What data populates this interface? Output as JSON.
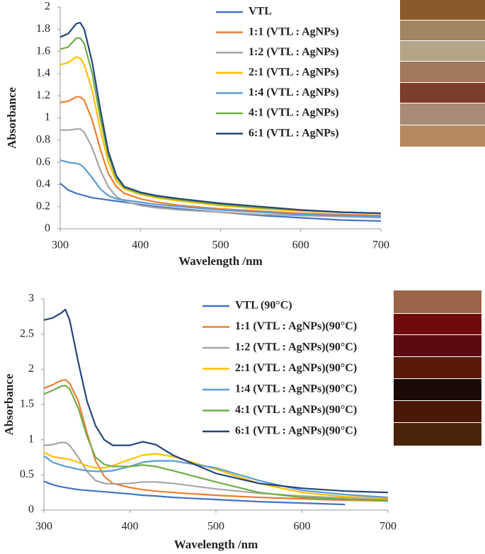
{
  "chart_data": [
    {
      "type": "line",
      "xlabel": "Wavelength /nm",
      "ylabel": "Absorbance",
      "xlim": [
        300,
        700
      ],
      "xticks": [
        300,
        400,
        500,
        600,
        700
      ],
      "ylim": [
        0,
        2
      ],
      "yticks": [
        0,
        0.2,
        0.4,
        0.6,
        0.8,
        1,
        1.2,
        1.4,
        1.6,
        1.8,
        2
      ],
      "x": [
        300,
        310,
        320,
        325,
        330,
        340,
        350,
        360,
        370,
        380,
        400,
        420,
        450,
        500,
        550,
        600,
        650,
        700
      ],
      "series": [
        {
          "name": "VTL",
          "color": "#4472c4",
          "values": [
            0.41,
            0.35,
            0.32,
            0.31,
            0.3,
            0.28,
            0.27,
            0.26,
            0.25,
            0.24,
            0.22,
            0.2,
            0.18,
            0.15,
            0.12,
            0.1,
            0.08,
            0.07
          ]
        },
        {
          "name": "1:1 (VTL : AgNPs)",
          "color": "#ed7d31",
          "values": [
            1.14,
            1.15,
            1.19,
            1.19,
            1.16,
            0.98,
            0.72,
            0.5,
            0.38,
            0.32,
            0.27,
            0.24,
            0.21,
            0.18,
            0.16,
            0.14,
            0.13,
            0.12
          ]
        },
        {
          "name": "1:2 (VTL : AgNPs)",
          "color": "#a5a5a5",
          "values": [
            0.89,
            0.89,
            0.9,
            0.9,
            0.87,
            0.73,
            0.53,
            0.38,
            0.29,
            0.25,
            0.21,
            0.19,
            0.17,
            0.15,
            0.13,
            0.12,
            0.11,
            0.1
          ]
        },
        {
          "name": "2:1 (VTL : AgNPs)",
          "color": "#ffc000",
          "values": [
            1.48,
            1.5,
            1.55,
            1.54,
            1.48,
            1.25,
            0.9,
            0.6,
            0.43,
            0.36,
            0.31,
            0.28,
            0.25,
            0.21,
            0.18,
            0.16,
            0.15,
            0.14
          ]
        },
        {
          "name": "1:4 (VTL : AgNPs)",
          "color": "#5b9bd5",
          "values": [
            0.62,
            0.6,
            0.59,
            0.58,
            0.55,
            0.46,
            0.36,
            0.3,
            0.27,
            0.26,
            0.24,
            0.22,
            0.2,
            0.17,
            0.15,
            0.13,
            0.12,
            0.11
          ]
        },
        {
          "name": "4:1 (VTL : AgNPs)",
          "color": "#70ad47",
          "values": [
            1.62,
            1.64,
            1.72,
            1.72,
            1.67,
            1.4,
            1.0,
            0.66,
            0.46,
            0.37,
            0.32,
            0.29,
            0.26,
            0.22,
            0.19,
            0.17,
            0.15,
            0.14
          ]
        },
        {
          "name": "6:1 (VTL : AgNPs)",
          "color": "#264478",
          "values": [
            1.73,
            1.76,
            1.85,
            1.86,
            1.8,
            1.5,
            1.08,
            0.7,
            0.48,
            0.38,
            0.33,
            0.3,
            0.27,
            0.23,
            0.2,
            0.17,
            0.15,
            0.14
          ]
        }
      ]
    },
    {
      "type": "line",
      "xlabel": "Wavelength /nm",
      "ylabel": "Absorbance",
      "xlim": [
        300,
        700
      ],
      "xticks": [
        300,
        400,
        500,
        600,
        700
      ],
      "ylim": [
        0,
        3
      ],
      "yticks": [
        0,
        0.5,
        1,
        1.5,
        2,
        2.5,
        3
      ],
      "x": [
        300,
        310,
        320,
        325,
        330,
        340,
        350,
        360,
        370,
        380,
        400,
        415,
        430,
        450,
        500,
        550,
        600,
        650,
        700
      ],
      "series": [
        {
          "name": "VTL (90°C)",
          "color": "#4472c4",
          "values": [
            0.41,
            0.36,
            0.33,
            0.32,
            0.31,
            0.29,
            0.28,
            0.27,
            0.26,
            0.25,
            0.23,
            0.21,
            0.2,
            0.18,
            0.15,
            0.12,
            0.1,
            0.08,
            null
          ]
        },
        {
          "name": "1:1 (VTL : AgNPs)(90°C)",
          "color": "#ed7d31",
          "values": [
            1.73,
            1.78,
            1.84,
            1.85,
            1.8,
            1.55,
            1.1,
            0.7,
            0.48,
            0.38,
            0.32,
            0.29,
            0.27,
            0.25,
            0.21,
            0.18,
            0.16,
            0.14,
            0.13
          ]
        },
        {
          "name": "1:2 (VTL : AgNPs)(90°C)",
          "color": "#a5a5a5",
          "values": [
            0.92,
            0.93,
            0.96,
            0.96,
            0.92,
            0.75,
            0.55,
            0.42,
            0.38,
            0.37,
            0.38,
            0.4,
            0.4,
            0.38,
            0.3,
            0.24,
            0.2,
            0.17,
            0.15
          ]
        },
        {
          "name": "2:1 (VTL : AgNPs)(90°C)",
          "color": "#ffc000",
          "values": [
            0.82,
            0.76,
            0.74,
            0.73,
            0.72,
            0.68,
            0.63,
            0.6,
            0.6,
            0.63,
            0.72,
            0.78,
            0.8,
            0.76,
            0.58,
            0.38,
            0.25,
            0.19,
            0.17
          ]
        },
        {
          "name": "1:4 (VTL : AgNPs)(90°C)",
          "color": "#5b9bd5",
          "values": [
            0.77,
            0.68,
            0.64,
            0.62,
            0.61,
            0.58,
            0.56,
            0.55,
            0.55,
            0.56,
            0.62,
            0.68,
            0.7,
            0.7,
            0.6,
            0.42,
            0.28,
            0.22,
            0.18
          ]
        },
        {
          "name": "4:1 (VTL : AgNPs)(90°C)",
          "color": "#70ad47",
          "values": [
            1.65,
            1.7,
            1.76,
            1.77,
            1.72,
            1.45,
            1.05,
            0.75,
            0.65,
            0.62,
            0.62,
            0.64,
            0.62,
            0.56,
            0.4,
            0.25,
            0.18,
            0.15,
            0.14
          ]
        },
        {
          "name": "6:1 (VTL : AgNPs)(90°C)",
          "color": "#264478",
          "values": [
            2.7,
            2.73,
            2.8,
            2.85,
            2.7,
            2.1,
            1.55,
            1.2,
            1.0,
            0.92,
            0.92,
            0.97,
            0.93,
            0.78,
            0.52,
            0.38,
            0.31,
            0.27,
            0.25
          ]
        }
      ]
    }
  ]
}
